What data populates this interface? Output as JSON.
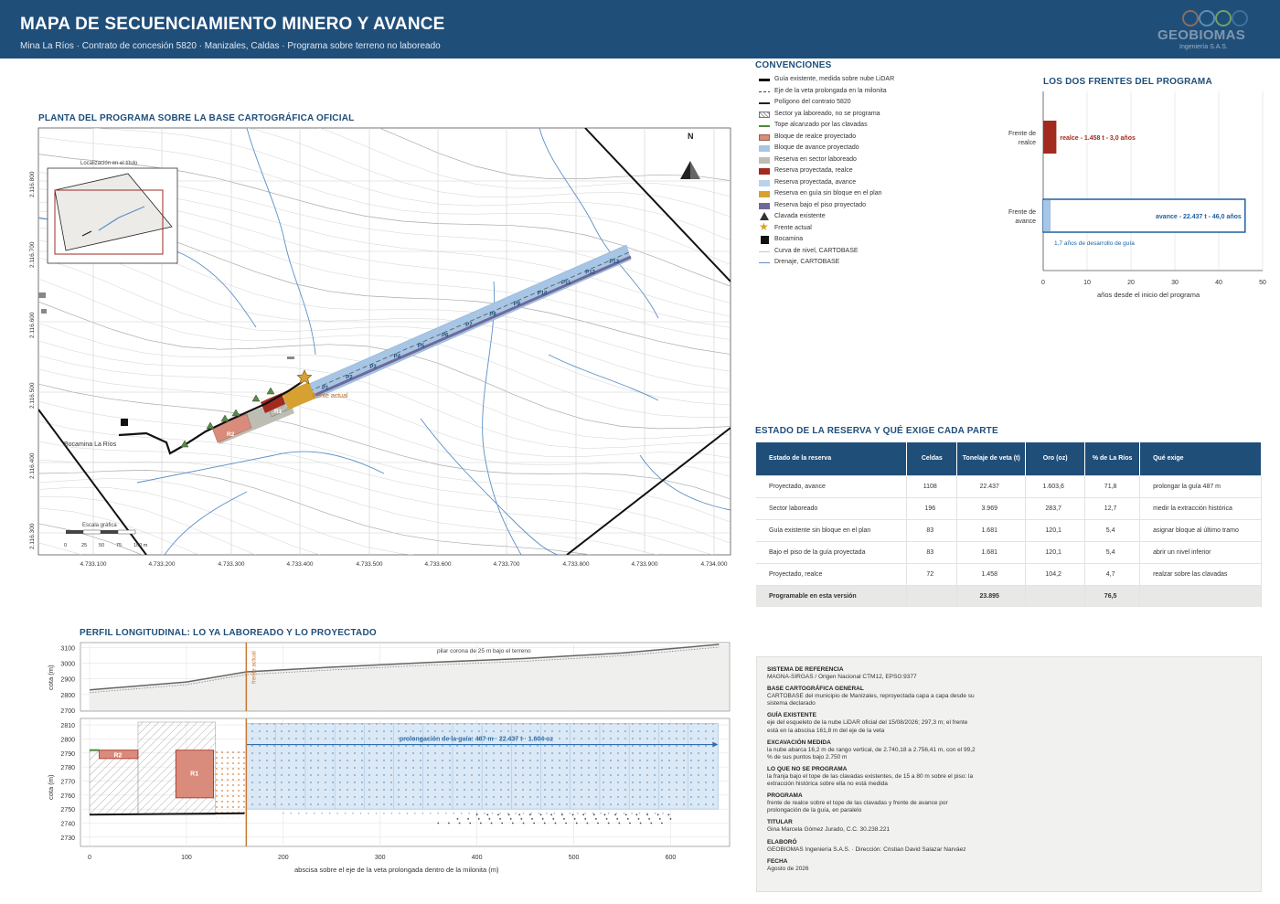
{
  "header": {
    "title": "MAPA DE SECUENCIAMIENTO MINERO Y AVANCE",
    "subtitle": "Mina La Ríos · Contrato de concesión 5820 · Manizales, Caldas · Programa sobre terreno no laboreado",
    "logo_name": "GEOBIOMAS",
    "logo_tag": "Ingeniería S.A.S."
  },
  "map": {
    "title": "PLANTA DEL PROGRAMA SOBRE LA BASE CARTOGRÁFICA OFICIAL",
    "north": "N",
    "inset_label": "Localización en el título",
    "bocamina_label": "Bocamina La Ríos",
    "frente_label": "frente actual",
    "scale_label": "Escala gráfica",
    "scale_ticks": [
      "0",
      "25",
      "50",
      "75",
      "100 m"
    ],
    "y_ticks": [
      "2.116.800",
      "2.116.700",
      "2.116.600",
      "2.116.500",
      "2.116.400",
      "2.116.300"
    ],
    "x_ticks": [
      "4.733.100",
      "4.733.200",
      "4.733.300",
      "4.733.400",
      "4.733.500",
      "4.733.600",
      "4.733.700",
      "4.733.800",
      "4.733.900",
      "4.734.000"
    ],
    "block_labels": [
      "P1",
      "P2",
      "P3",
      "P4",
      "P5",
      "P6",
      "P7",
      "P8",
      "P9",
      "P10",
      "P11",
      "P12",
      "P13"
    ],
    "r_labels": [
      "R1",
      "R2"
    ],
    "colors": {
      "avance": "#a7c5e4",
      "realce": "#a32a1e",
      "bloque_realce": "#d98c7c",
      "guia_sin_bloque": "#d7a132",
      "bajo_piso": "#6d6a9a",
      "laboreado": "#bdbdb4"
    }
  },
  "legend": {
    "title": "CONVENCIONES",
    "items": [
      {
        "label": "Guía existente, medida sobre nube LiDAR",
        "icon": "thick-line"
      },
      {
        "label": "Eje de la veta prolongada en la milonita",
        "icon": "dash-line"
      },
      {
        "label": "Polígono del contrato 5820",
        "icon": "thin-line"
      },
      {
        "label": "Sector ya laboreado, no se programa",
        "icon": "hatch-box"
      },
      {
        "label": "Tope alcanzado por las clavadas",
        "icon": "green-line"
      },
      {
        "label": "Bloque de realce proyectado",
        "icon": "realce-box"
      },
      {
        "label": "Bloque de avance proyectado",
        "icon": "avance-box"
      },
      {
        "label": "Reserva en sector laboreado",
        "icon": "laboreado-box"
      },
      {
        "label": "Reserva proyectada, realce",
        "icon": "realce-dark-box"
      },
      {
        "label": "Reserva proyectada, avance",
        "icon": "avance-dots-box"
      },
      {
        "label": "Reserva en guía sin bloque en el plan",
        "icon": "orange-box"
      },
      {
        "label": "Reserva bajo el piso proyectado",
        "icon": "purple-box"
      },
      {
        "label": "Clavada existente",
        "icon": "triangle"
      },
      {
        "label": "Frente actual",
        "icon": "star"
      },
      {
        "label": "Bocamina",
        "icon": "square"
      },
      {
        "label": "Curva de nivel, CARTOBASE",
        "icon": "contour-line"
      },
      {
        "label": "Drenaje, CARTOBASE",
        "icon": "blue-line"
      }
    ]
  },
  "fronts": {
    "title": "LOS DOS FRENTES DEL PROGRAMA",
    "xlabel": "años desde el inicio del programa",
    "note": "1,7 años de desarrollo de guía",
    "x_ticks": [
      "0",
      "10",
      "20",
      "30",
      "40",
      "50"
    ],
    "chart_data": {
      "type": "bar",
      "orientation": "horizontal",
      "categories": [
        "Frente de realce",
        "Frente de avance"
      ],
      "series": [
        {
          "name": "realce",
          "values": [
            3.0,
            null
          ]
        },
        {
          "name": "avance",
          "values": [
            null,
            46.0
          ]
        }
      ],
      "bar_labels": [
        "realce - 1.458 t - 3,0 años",
        "avance - 22.437 t - 46,0 años"
      ],
      "guide_years": 1.7,
      "xlim": [
        0,
        50
      ],
      "colors": {
        "realce": "#a32a1e",
        "avance": "#1f5f9f"
      }
    }
  },
  "table": {
    "title": "ESTADO DE LA RESERVA Y QUÉ EXIGE CADA PARTE",
    "headers": [
      "Estado de la reserva",
      "Celdas",
      "Tonelaje de veta (t)",
      "Oro (oz)",
      "% de La Ríos",
      "Qué exige"
    ],
    "rows": [
      [
        "Proyectado, avance",
        "1108",
        "22.437",
        "1.603,6",
        "71,8",
        "prolongar la guía 487 m"
      ],
      [
        "Sector laboreado",
        "196",
        "3.969",
        "283,7",
        "12,7",
        "medir la extracción histórica"
      ],
      [
        "Guía existente sin bloque en el plan",
        "83",
        "1.681",
        "120,1",
        "5,4",
        "asignar bloque al último tramo"
      ],
      [
        "Bajo el piso de la guía proyectada",
        "83",
        "1.681",
        "120,1",
        "5,4",
        "abrir un nivel inferior"
      ],
      [
        "Proyectado, realce",
        "72",
        "1.458",
        "104,2",
        "4,7",
        "realzar sobre las clavadas"
      ]
    ],
    "total": [
      "Programable en esta versión",
      "",
      "23.895",
      "",
      "76,5",
      ""
    ]
  },
  "profile": {
    "title": "PERFIL LONGITUDINAL: LO YA LABOREADO Y LO PROYECTADO",
    "top_annotation": "pilar corona de 25 m bajo el terreno",
    "frente_label": "frente actual",
    "prolong_label": "prolongación de la guía: 487 m · 22.437 t · 1.604 oz",
    "top_y_ticks": [
      "3100",
      "3000",
      "2900",
      "2800",
      "2700"
    ],
    "bottom_y_ticks": [
      "2810",
      "2800",
      "2790",
      "2780",
      "2770",
      "2760",
      "2750",
      "2740",
      "2730"
    ],
    "x_ticks": [
      "0",
      "100",
      "200",
      "300",
      "400",
      "500",
      "600"
    ],
    "ylabel": "cota (m)",
    "xlabel": "abscisa sobre el eje de la veta prolongada dentro de la milonita (m)",
    "r_labels": [
      "R2",
      "R1"
    ],
    "chart_data": {
      "type": "line",
      "terrain_x": [
        0,
        100,
        162,
        250,
        350,
        450,
        550,
        650
      ],
      "terrain_y": [
        2830,
        2880,
        2945,
        2975,
        3005,
        3030,
        3065,
        3120
      ],
      "frente_x": 161.8,
      "guide_length_m": 487,
      "xlim": [
        0,
        660
      ],
      "ylim_top": [
        2700,
        3120
      ],
      "ylim_bottom": [
        2725,
        2812
      ]
    }
  },
  "info": {
    "items": [
      {
        "h": "SISTEMA DE REFERENCIA",
        "b": "MAGNA-SIRGAS / Origen Nacional CTM12, EPSG:9377"
      },
      {
        "h": "BASE CARTOGRÁFICA GENERAL",
        "b": "CARTOBASE del municipio de Manizales, reproyectada capa a capa desde su sistema declarado"
      },
      {
        "h": "GUÍA EXISTENTE",
        "b": "eje del esqueleto de la nube LiDAR oficial del 15/08/2026; 297,3 m; el frente está en la abscisa 161,8 m del eje de la veta"
      },
      {
        "h": "EXCAVACIÓN MEDIDA",
        "b": "la nube abarca 16,2 m de rango vertical, de 2.740,18 a 2.756,41 m, con el 99,2 % de sus puntos bajo 2.750 m"
      },
      {
        "h": "LO QUE NO SE PROGRAMA",
        "b": "la franja bajo el tope de las clavadas existentes, de 15 a 80 m sobre el piso: la extracción histórica sobre ella no está medida"
      },
      {
        "h": "PROGRAMA",
        "b": "frente de realce sobre el tope de las clavadas y frente de avance por prolongación de la guía, en paralelo"
      },
      {
        "h": "TITULAR",
        "b": "Gina Marcela Gómez Jurado, C.C. 30.238.221"
      },
      {
        "h": "ELABORÓ",
        "b": "GEOBIOMAS Ingeniería S.A.S. · Dirección: Cristian David Salazar Narváez"
      },
      {
        "h": "FECHA",
        "b": "Agosto de 2026"
      }
    ]
  }
}
